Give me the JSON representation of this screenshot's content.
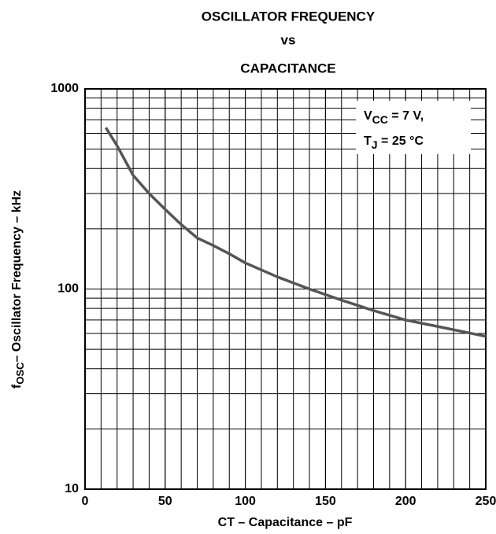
{
  "chart_data": {
    "type": "line",
    "title": [
      "OSCILLATOR FREQUENCY",
      "vs",
      "CAPACITANCE"
    ],
    "x_label": "CT – Capacitance – pF",
    "y_label": {
      "main": "f",
      "sub": "OSC",
      "rest": "– Oscillator Frequency – kHz"
    },
    "annotation": [
      {
        "main": "V",
        "sub": "CC",
        "rest": " = 7 V,"
      },
      {
        "main": "T",
        "sub": "J",
        "rest": " = 25 °C"
      }
    ],
    "x": [
      13,
      20,
      30,
      40,
      50,
      60,
      70,
      80,
      90,
      100,
      120,
      140,
      160,
      180,
      200,
      220,
      250
    ],
    "values": [
      640,
      520,
      370,
      300,
      250,
      210,
      180,
      165,
      150,
      135,
      115,
      100,
      88,
      78,
      70,
      65,
      58
    ],
    "color": "#555555",
    "xlim": [
      0,
      250
    ],
    "xticks": [
      0,
      50,
      100,
      150,
      200,
      250
    ],
    "ylim": [
      10,
      1000
    ],
    "yticks": [
      10,
      100,
      1000
    ],
    "log_y": true,
    "grid": true
  }
}
